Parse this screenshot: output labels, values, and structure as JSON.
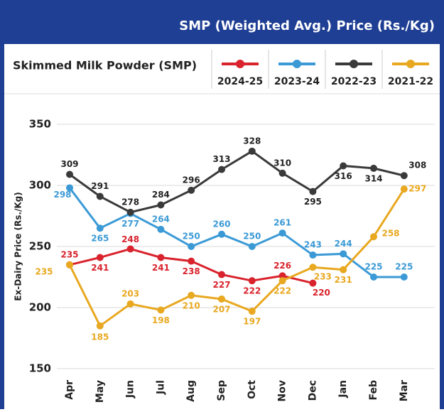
{
  "chart_data": {
    "type": "line",
    "title": "SMP (Weighted Avg.) Price (Rs./Kg)",
    "subtitle": "Skimmed Milk Powder (SMP)",
    "y_label": "Ex-Dairy Price (Rs./Kg)",
    "categories": [
      "Apr",
      "May",
      "Jun",
      "Jul",
      "Aug",
      "Sep",
      "Oct",
      "Nov",
      "Dec",
      "Jan",
      "Feb",
      "Mar"
    ],
    "ylim": [
      150,
      350
    ],
    "yticks": [
      150,
      200,
      250,
      300,
      350
    ],
    "grid": true,
    "series": [
      {
        "name": "2024-25",
        "color": "#d9232d",
        "values": [
          235,
          241,
          248,
          241,
          238,
          227,
          222,
          226,
          220,
          null,
          null,
          null
        ]
      },
      {
        "name": "2023-24",
        "color": "#3b9ad6",
        "values": [
          298,
          265,
          277,
          264,
          250,
          260,
          250,
          261,
          243,
          244,
          225,
          225
        ]
      },
      {
        "name": "2022-23",
        "color": "#3a3a3a",
        "values": [
          309,
          291,
          278,
          284,
          296,
          313,
          328,
          310,
          295,
          316,
          314,
          308
        ]
      },
      {
        "name": "2021-22",
        "color": "#e8a820",
        "values": [
          235,
          185,
          203,
          198,
          210,
          207,
          197,
          222,
          233,
          231,
          258,
          297
        ]
      }
    ]
  }
}
